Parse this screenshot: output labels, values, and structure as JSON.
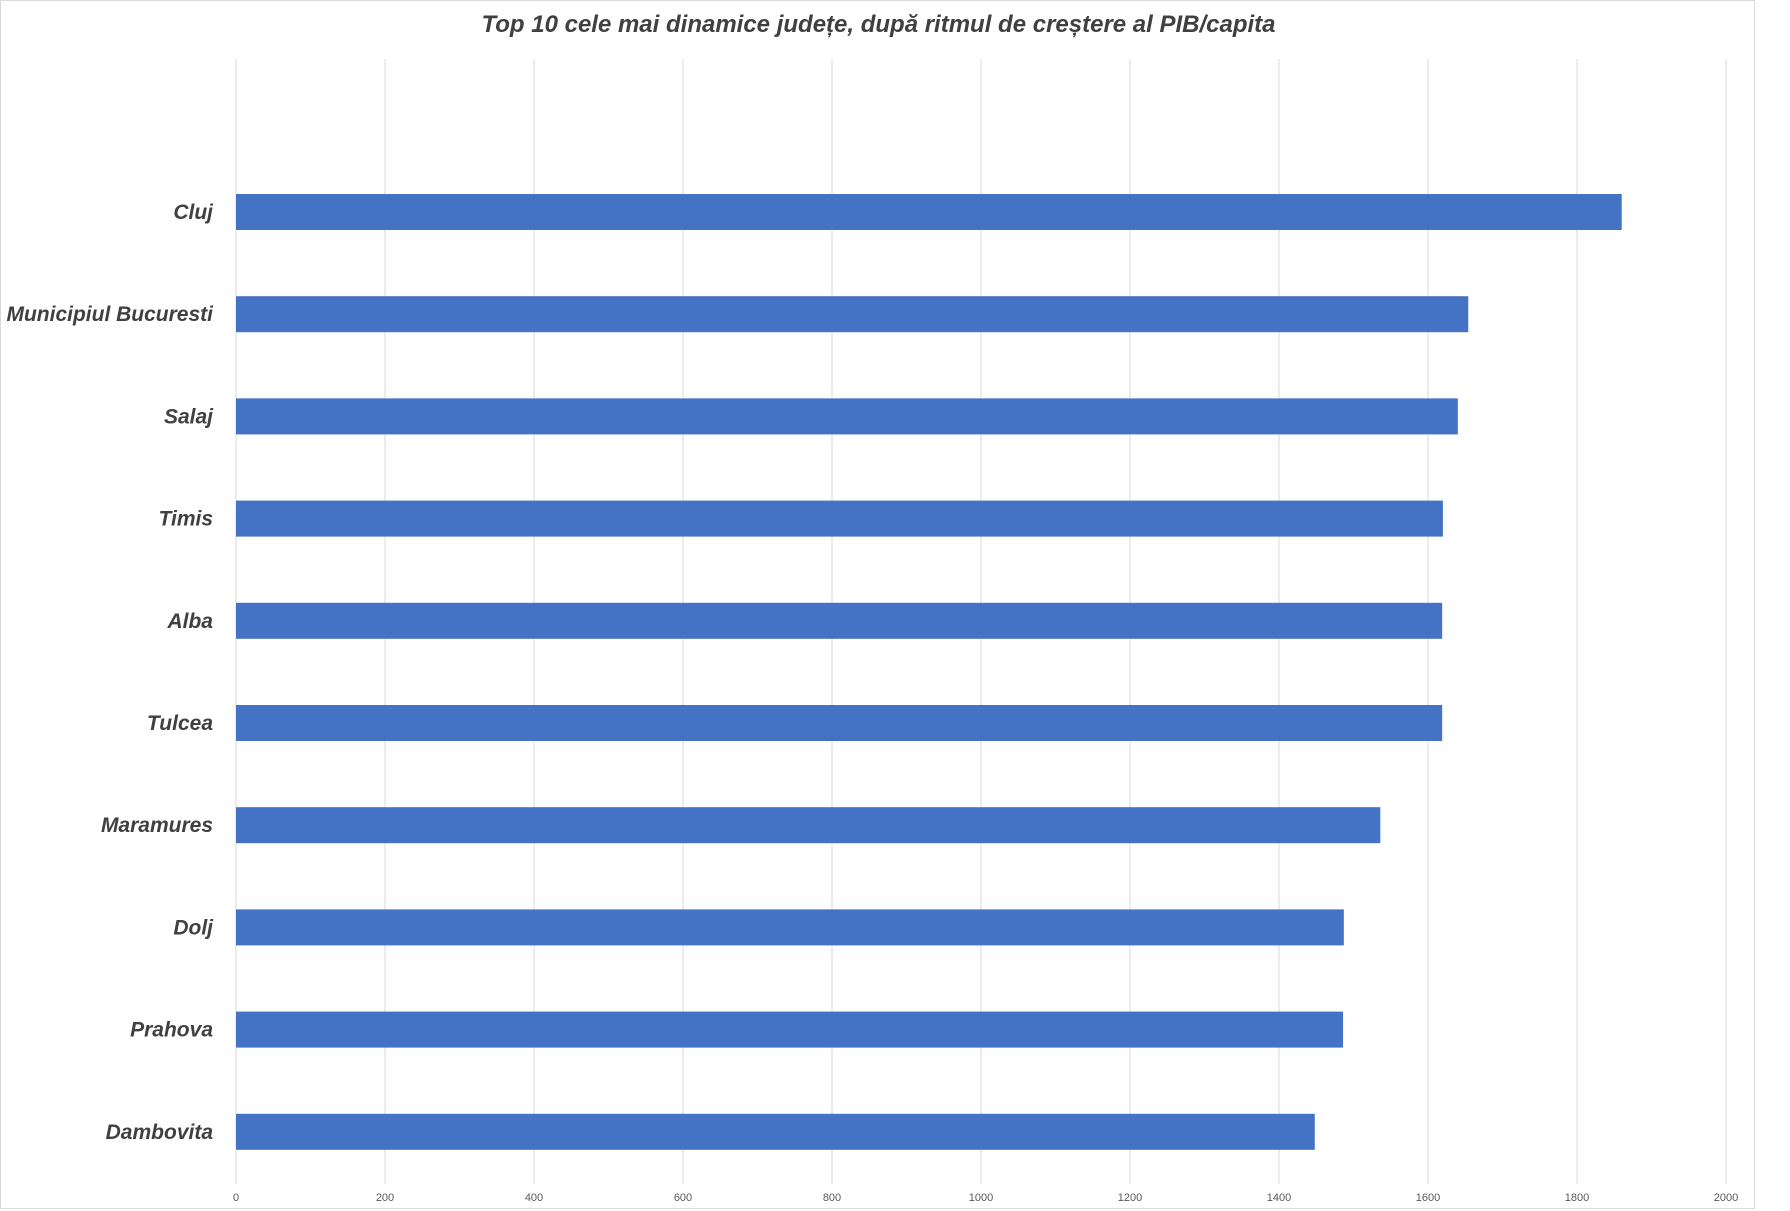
{
  "chart_data": {
    "type": "bar",
    "orientation": "horizontal",
    "title": "Top 10 cele mai dinamice județe, după ritmul de creștere al PIB/capita",
    "xlabel": "",
    "ylabel": "",
    "categories": [
      "Cluj",
      "Municipiul Bucuresti",
      "Salaj",
      "Timis",
      "Alba",
      "Tulcea",
      "Maramures",
      "Dolj",
      "Prahova",
      "Dambovita"
    ],
    "values": [
      1860,
      1654,
      1640,
      1620,
      1619,
      1619,
      1536,
      1487,
      1486,
      1448
    ],
    "xlim": [
      0,
      2000
    ],
    "xticks": [
      "0",
      "200",
      "400",
      "600",
      "800",
      "1000",
      "1200",
      "1400",
      "1600",
      "1800",
      "2000"
    ],
    "grid": true,
    "legend": "none",
    "bar_color": "#4472c4"
  }
}
